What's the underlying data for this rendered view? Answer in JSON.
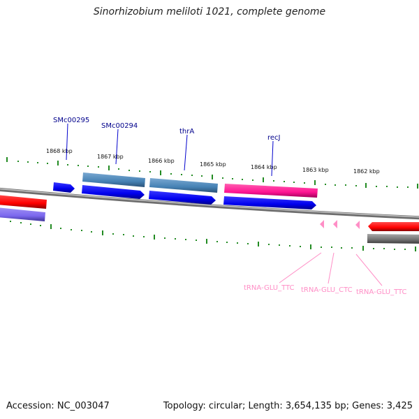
{
  "title": "Sinorhizobium meliloti 1021, complete genome",
  "footer": {
    "accession": "Accession: NC_003047",
    "topology": "Topology: circular; Length: 3,654,135 bp; Genes: 3,425"
  },
  "ticks": [
    "1868 kbp",
    "1867 kbp",
    "1866 kbp",
    "1865 kbp",
    "1864 kbp",
    "1863 kbp",
    "1862 kbp"
  ],
  "gene_labels": [
    "SMc00295",
    "SMc00294",
    "thrA",
    "recJ"
  ],
  "trna_labels": [
    "tRNA-GLU_TTC",
    "tRNA-GLU_CTC",
    "tRNA-GLU_TTC"
  ],
  "colors": {
    "backbone": "#8a8a8a",
    "cds": "#0000ff",
    "gene": "#4682b4",
    "trna_feature": "#ff1493",
    "red_feature": "#ff0000",
    "purple_feature": "#7b68ee",
    "gray_feature": "#707070",
    "tick": "#228b22",
    "trna": "#ff8ec6",
    "label": "#00008b"
  }
}
